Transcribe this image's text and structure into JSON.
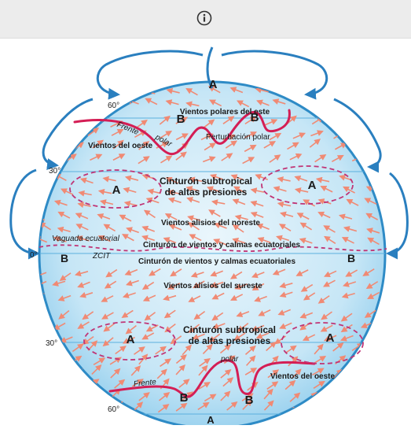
{
  "toolbar": {
    "info_icon": "info-icon"
  },
  "diagram": {
    "latitudes": {
      "n60": "60°",
      "n30": "30°",
      "eq": "0°",
      "s30": "30°",
      "s60": "60°"
    },
    "labels": {
      "polar_easterlies": "Vientos polares del este",
      "westerlies_north": "Vientos del oeste",
      "front_north": "Frente",
      "polar_north": "polar",
      "polar_disturbance": "Perturbación polar",
      "subtropical_belt_north_line1": "Cinturón subtropical",
      "subtropical_belt_north_line2": "de altas presiones",
      "ne_trades": "Vientos alisios del noreste",
      "doldrums_upper": "Cinturón de vientos y calmas ecuatoriales",
      "equatorial_trough": "Vaguada ecuatorial",
      "itcz": "ZCIT",
      "doldrums_lower": "Cinturón de vientos y calmas ecuatoriales",
      "se_trades": "Vientos alisios del sureste",
      "subtropical_belt_south_line1": "Cinturón subtropical",
      "subtropical_belt_south_line2": "de altas presiones",
      "polar_south": "polar",
      "front_south": "Frente",
      "westerlies_south": "Vientos del oeste"
    },
    "pressure": {
      "a_top": "A",
      "b_polar_n1": "B",
      "b_polar_n2": "B",
      "a_n_left": "A",
      "a_n_right": "A",
      "b_eq_left": "B",
      "b_eq_right": "B",
      "a_s_left": "A",
      "a_s_right": "A",
      "b_polar_s1": "B",
      "b_polar_s2": "B",
      "a_bottom": "A"
    },
    "colors": {
      "ocean_light": "#e4f3fb",
      "ocean_mid": "#9fd3ee",
      "outline": "#2e8bc6",
      "cell_arrow": "#2a7fbf",
      "wind_arrow": "#f08a74",
      "front": "#d41e55",
      "high_ellipse": "#c03576",
      "text": "#1a1a1a"
    }
  }
}
